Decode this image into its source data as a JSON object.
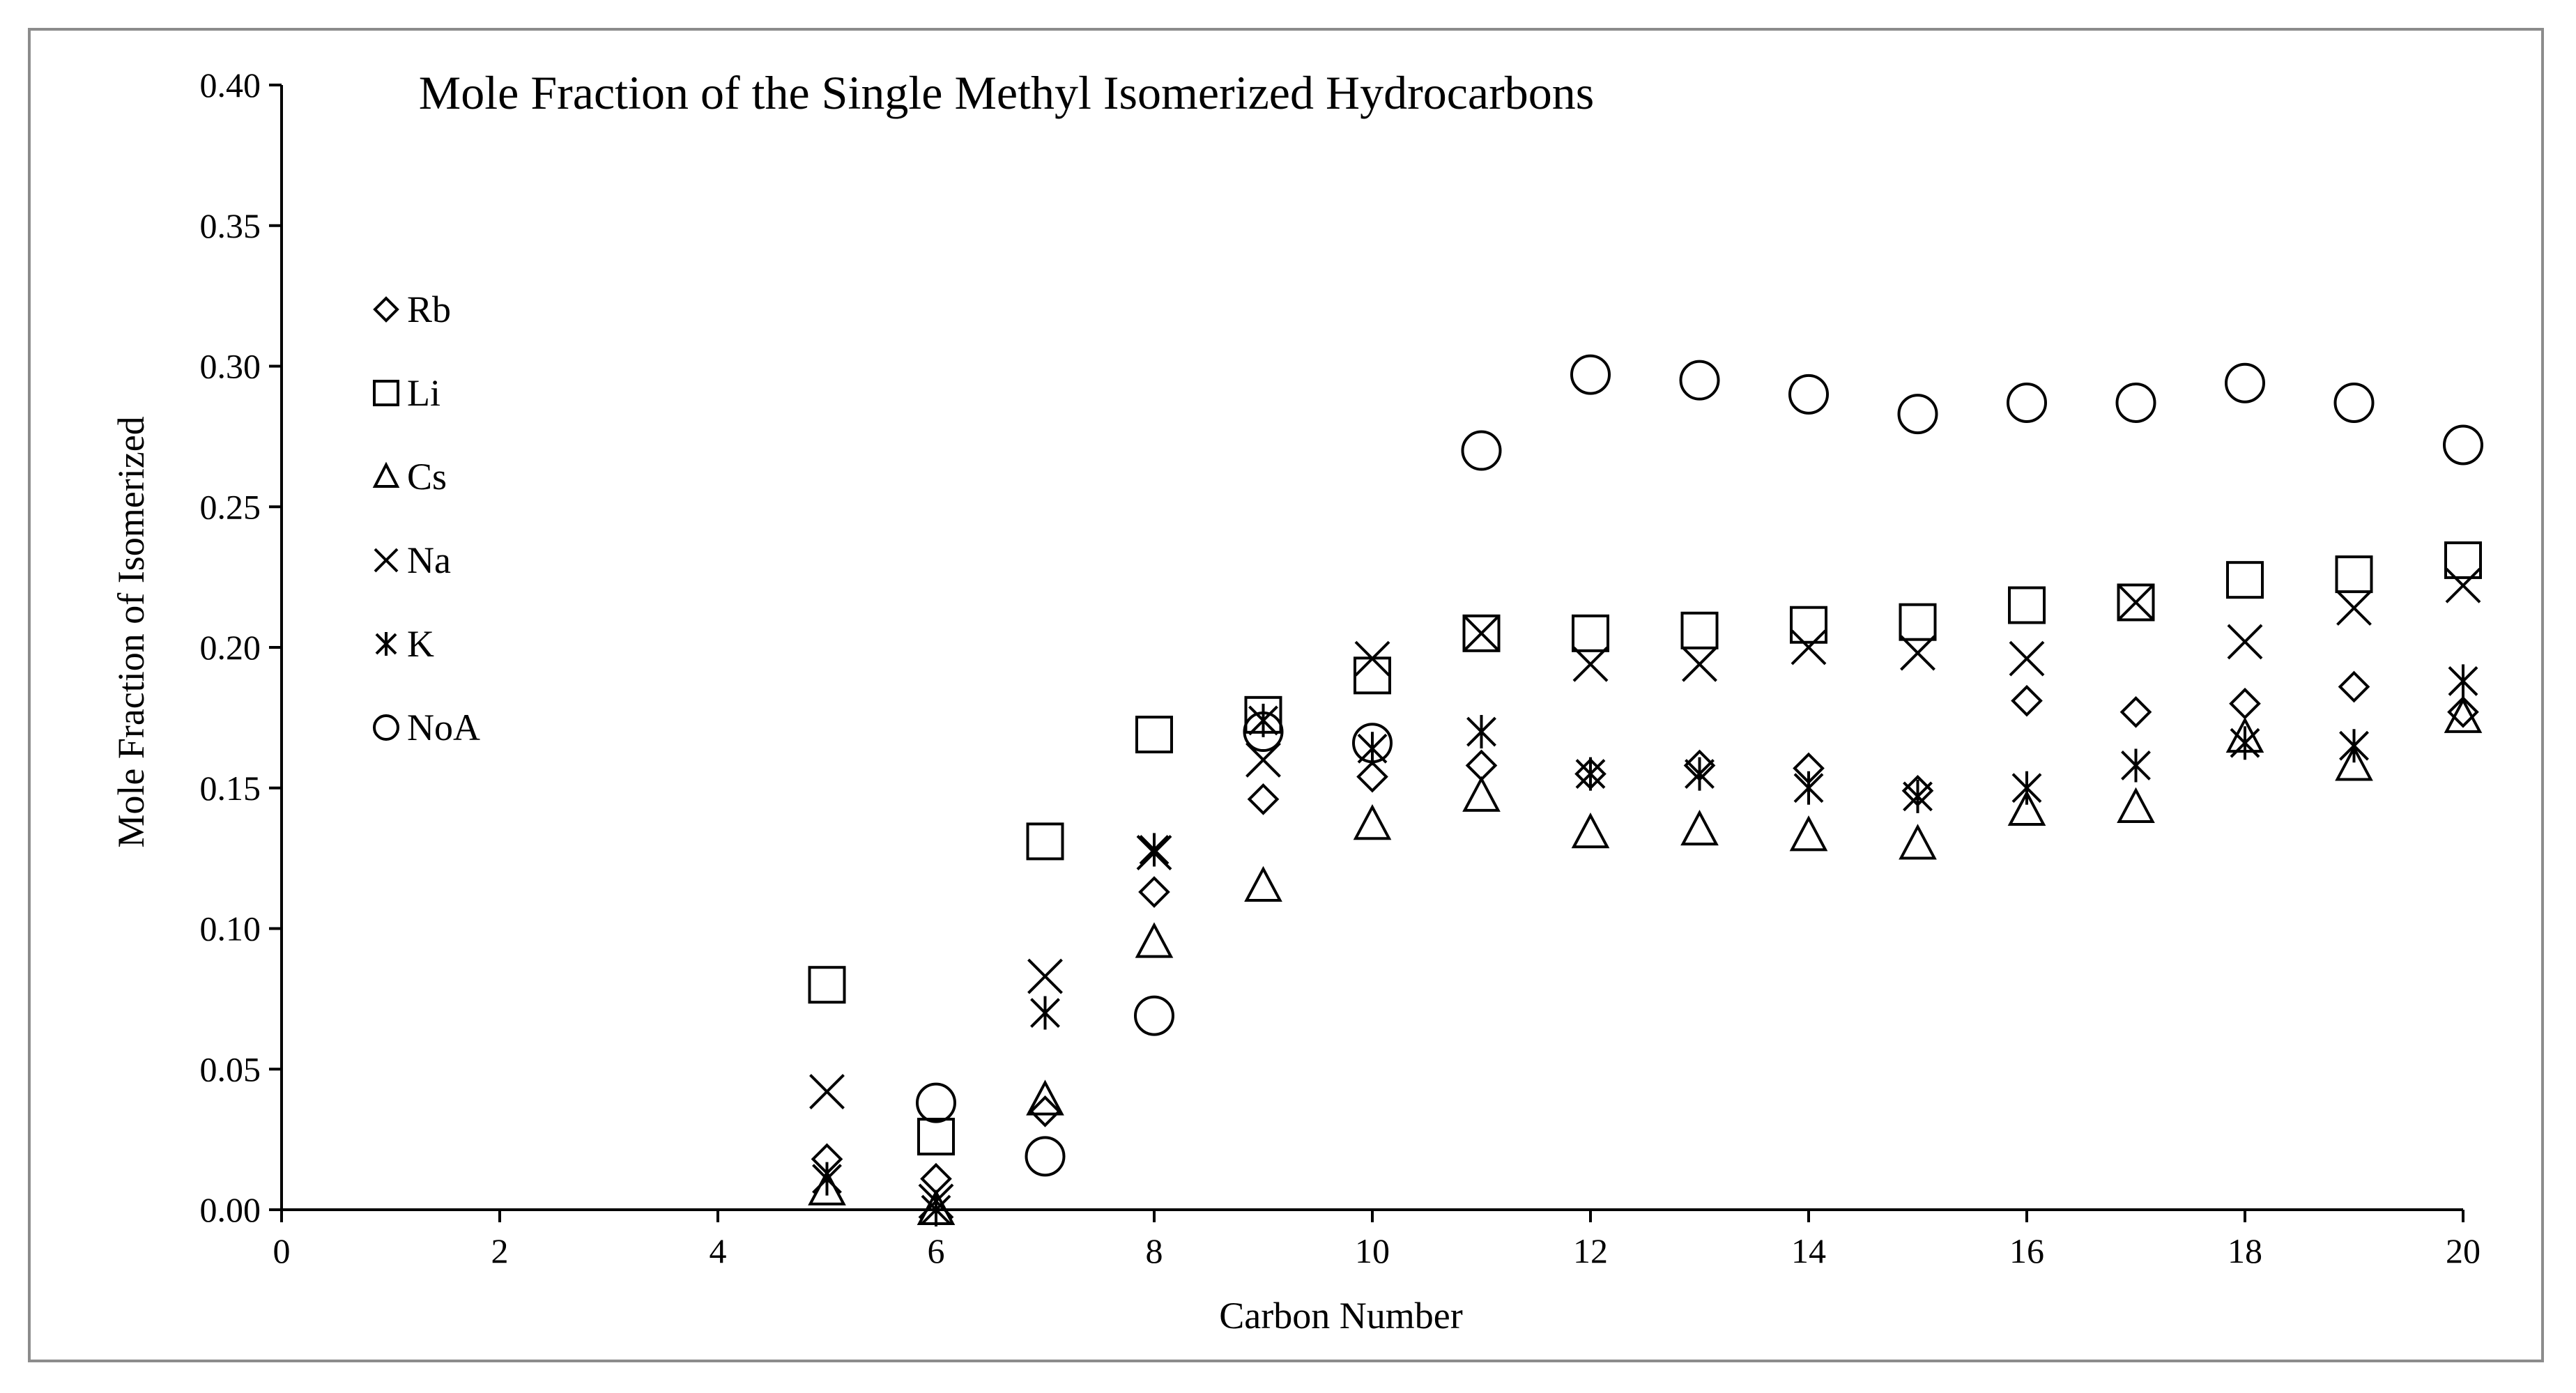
{
  "chart_data": {
    "type": "scatter",
    "title": "Mole Fraction of the Single Methyl Isomerized Hydrocarbons",
    "xlabel": "Carbon Number",
    "ylabel": "Mole Fraction of Isomerized",
    "xlim": [
      0,
      20
    ],
    "ylim": [
      0,
      0.4
    ],
    "xticks": [
      "0",
      "2",
      "4",
      "6",
      "8",
      "10",
      "12",
      "14",
      "16",
      "18",
      "20"
    ],
    "yticks": [
      "0.00",
      "0.05",
      "0.10",
      "0.15",
      "0.20",
      "0.25",
      "0.30",
      "0.35",
      "0.40"
    ],
    "grid": false,
    "legend_position": "left",
    "series": [
      {
        "name": "Rb",
        "marker": "diamond",
        "x": [
          5,
          6,
          7,
          8,
          9,
          10,
          11,
          12,
          13,
          14,
          15,
          16,
          17,
          18,
          19,
          20
        ],
        "y": [
          0.018,
          0.011,
          0.035,
          0.113,
          0.146,
          0.154,
          0.158,
          0.155,
          0.158,
          0.157,
          0.149,
          0.181,
          0.177,
          0.18,
          0.186,
          0.177
        ]
      },
      {
        "name": "Li",
        "marker": "square",
        "x": [
          5,
          6,
          7,
          8,
          9,
          10,
          11,
          12,
          13,
          14,
          15,
          16,
          17,
          18,
          19,
          20
        ],
        "y": [
          0.08,
          0.026,
          0.131,
          0.169,
          0.176,
          0.19,
          0.205,
          0.205,
          0.206,
          0.208,
          0.209,
          0.215,
          0.216,
          0.224,
          0.226,
          0.231
        ]
      },
      {
        "name": "Cs",
        "marker": "triangle",
        "x": [
          5,
          6,
          7,
          8,
          9,
          10,
          11,
          12,
          13,
          14,
          15,
          16,
          17,
          18,
          19,
          20
        ],
        "y": [
          0.007,
          0.0,
          0.039,
          0.095,
          0.115,
          0.137,
          0.147,
          0.134,
          0.135,
          0.133,
          0.13,
          0.142,
          0.143,
          0.168,
          0.158,
          0.175
        ]
      },
      {
        "name": "Na",
        "marker": "x",
        "x": [
          5,
          6,
          7,
          8,
          9,
          10,
          11,
          12,
          13,
          14,
          15,
          16,
          17,
          18,
          19,
          20
        ],
        "y": [
          0.042,
          0.003,
          0.083,
          0.127,
          0.16,
          0.196,
          0.205,
          0.194,
          0.194,
          0.2,
          0.198,
          0.196,
          0.216,
          0.202,
          0.214,
          0.222
        ]
      },
      {
        "name": "K",
        "marker": "asterisk",
        "x": [
          5,
          6,
          7,
          8,
          9,
          10,
          11,
          12,
          13,
          14,
          15,
          16,
          17,
          18,
          19,
          20
        ],
        "y": [
          0.011,
          0.0,
          0.07,
          0.128,
          0.174,
          0.164,
          0.17,
          0.155,
          0.155,
          0.15,
          0.147,
          0.15,
          0.158,
          0.166,
          0.165,
          0.188
        ]
      },
      {
        "name": "NoA",
        "marker": "circle",
        "x": [
          6,
          7,
          8,
          9,
          10,
          11,
          12,
          13,
          14,
          15,
          16,
          17,
          18,
          19,
          20
        ],
        "y": [
          0.038,
          0.019,
          0.069,
          0.17,
          0.166,
          0.27,
          0.297,
          0.295,
          0.29,
          0.283,
          0.287,
          0.287,
          0.294,
          0.287,
          0.272
        ]
      }
    ]
  }
}
